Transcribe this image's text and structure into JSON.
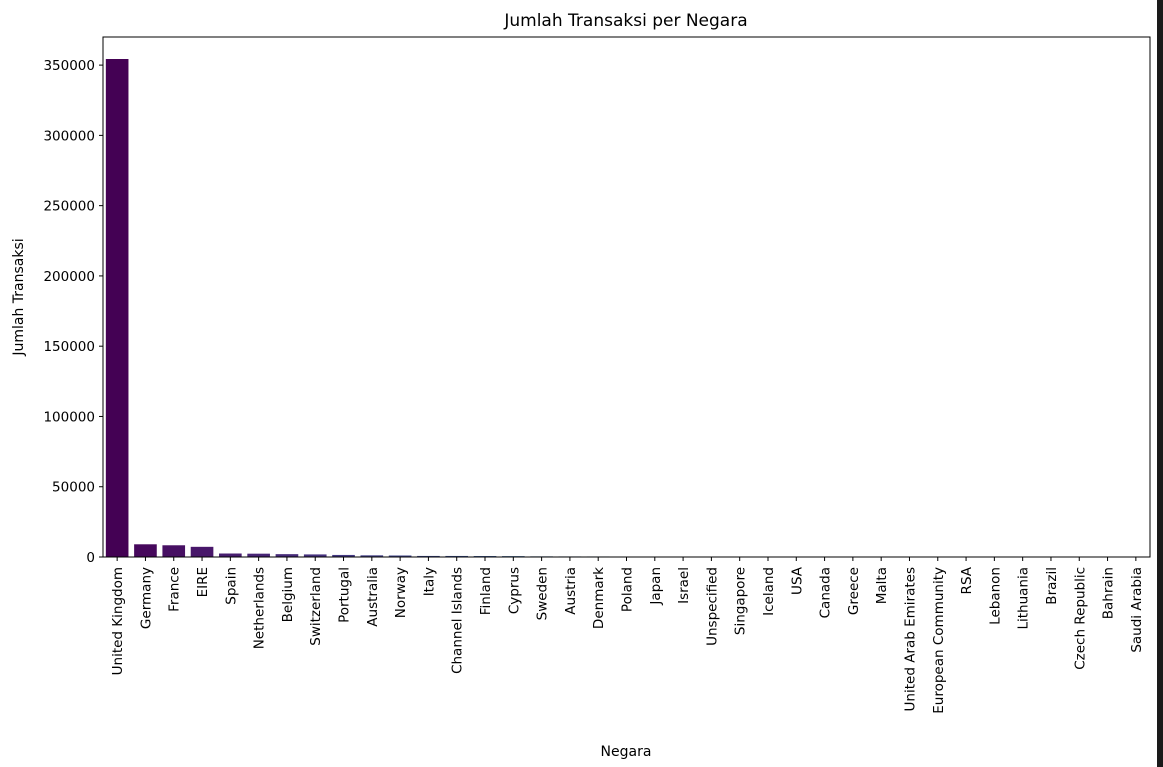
{
  "chart_data": {
    "type": "bar",
    "title": "Jumlah Transaksi per Negara",
    "xlabel": "Negara",
    "ylabel": "Jumlah Transaksi",
    "ylim": [
      0,
      370000
    ],
    "yticks": [
      0,
      50000,
      100000,
      150000,
      200000,
      250000,
      300000,
      350000
    ],
    "grid": false,
    "categories": [
      "United Kingdom",
      "Germany",
      "France",
      "EIRE",
      "Spain",
      "Netherlands",
      "Belgium",
      "Switzerland",
      "Portugal",
      "Australia",
      "Norway",
      "Italy",
      "Channel Islands",
      "Finland",
      "Cyprus",
      "Sweden",
      "Austria",
      "Denmark",
      "Poland",
      "Japan",
      "Israel",
      "Unspecified",
      "Singapore",
      "Iceland",
      "USA",
      "Canada",
      "Greece",
      "Malta",
      "United Arab Emirates",
      "European Community",
      "RSA",
      "Lebanon",
      "Lithuania",
      "Brazil",
      "Czech Republic",
      "Bahrain",
      "Saudi Arabia"
    ],
    "values": [
      354345,
      9042,
      8342,
      7238,
      2485,
      2363,
      2031,
      1842,
      1462,
      1185,
      1072,
      758,
      748,
      685,
      614,
      451,
      398,
      380,
      330,
      321,
      245,
      244,
      222,
      182,
      179,
      151,
      145,
      112,
      68,
      60,
      57,
      45,
      35,
      32,
      25,
      17,
      9
    ],
    "colors": [
      "#440154",
      "#46085c",
      "#471063",
      "#48176a",
      "#481e70",
      "#482576",
      "#472c7a",
      "#46327e",
      "#443983",
      "#423f85",
      "#404588",
      "#3e4a89",
      "#3b518b",
      "#39568c",
      "#365c8d",
      "#34618d",
      "#31668e",
      "#2f6b8e",
      "#2d708e",
      "#2b758e",
      "#297a8e",
      "#277f8e",
      "#25848e",
      "#23898e",
      "#218e8d",
      "#1f938c",
      "#1f988b",
      "#1e9d89",
      "#21a585",
      "#25ab82",
      "#2cb17e",
      "#35b779",
      "#3fbc73",
      "#4ac16d",
      "#56c667",
      "#63cb5f",
      "#70cf57"
    ]
  }
}
